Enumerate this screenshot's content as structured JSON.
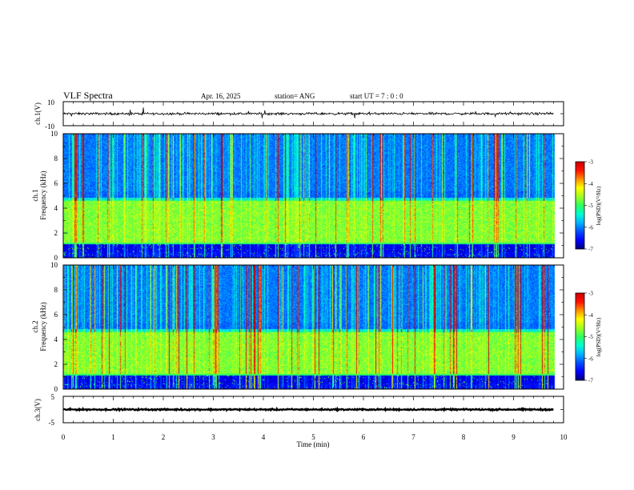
{
  "header": {
    "title": "VLF Spectra",
    "date": "Apr. 16, 2025",
    "station": "station= ANG",
    "start_ut": "start UT =  7 : 0  : 0"
  },
  "colors": {
    "colormap": [
      "#00007a",
      "#0000ff",
      "#0050ff",
      "#00b4ff",
      "#00ffd0",
      "#30ff60",
      "#a0ff20",
      "#ffff00",
      "#ff9000",
      "#ff1000",
      "#c80000"
    ]
  },
  "chart_data": [
    {
      "type": "line",
      "name": "ch1-waveform",
      "ylabel": "ch.1(V)",
      "ylim": [
        -10,
        10
      ],
      "yticks": [
        -10,
        10
      ],
      "xlim": [
        0,
        10
      ],
      "baseline": 0,
      "amplitude": 1.4
    },
    {
      "type": "heatmap",
      "name": "ch1-spectrogram",
      "ylabel_channel": "ch.1",
      "ylabel": "Frequency (kHz)",
      "xlim": [
        0,
        10
      ],
      "data_end_min": 9.8,
      "ylim": [
        0,
        10
      ],
      "yticks": [
        0,
        2,
        4,
        6,
        8,
        10
      ],
      "colorbar": {
        "label": "log(PSD)(V²/Hz)",
        "range": [
          -7,
          -3
        ],
        "ticks": [
          -3,
          -4,
          -5,
          -6,
          -7
        ]
      }
    },
    {
      "type": "heatmap",
      "name": "ch2-spectrogram",
      "ylabel_channel": "ch.2",
      "ylabel": "Frequency (kHz)",
      "xlim": [
        0,
        10
      ],
      "data_end_min": 9.8,
      "ylim": [
        0,
        10
      ],
      "yticks": [
        0,
        2,
        4,
        6,
        8,
        10
      ],
      "colorbar": {
        "label": "log(PSD)(V²/Hz)",
        "range": [
          -7,
          -3
        ],
        "ticks": [
          -3,
          -4,
          -5,
          -6,
          -7
        ]
      }
    },
    {
      "type": "line",
      "name": "ch3-waveform",
      "ylabel": "ch.3(V)",
      "ylim": [
        -5,
        5
      ],
      "yticks": [
        -5,
        5
      ],
      "xlim": [
        0,
        10
      ],
      "baseline": 0,
      "amplitude": 0.4
    }
  ],
  "x_axis": {
    "label": "Time (min)",
    "ticks": [
      0,
      1,
      2,
      3,
      4,
      5,
      6,
      7,
      8,
      9,
      10
    ]
  }
}
